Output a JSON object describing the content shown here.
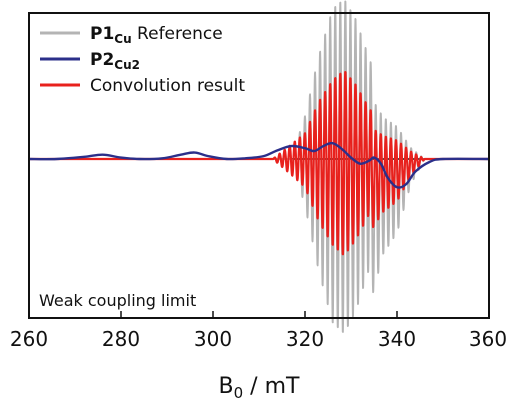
{
  "chart_data": {
    "type": "line",
    "xlabel": "B",
    "xlabel_sub": "0",
    "xlabel_unit": " / mT",
    "ylabel": "",
    "xlim": [
      260,
      360
    ],
    "ylim": [
      -1.0,
      1.0
    ],
    "x_ticks": [
      260,
      280,
      300,
      320,
      340,
      360
    ],
    "x_tick_labels": [
      "260",
      "280",
      "300",
      "320",
      "340",
      "360"
    ],
    "grid": false,
    "legend_position": "top-left",
    "annotation": "Weak coupling limit",
    "series": [
      {
        "name": "P1",
        "name_sub": "Cu",
        "name_suffix": " Reference",
        "color": "#b4b4b4",
        "style": "dense-oscillation",
        "center": 328.5,
        "oscillation_period": 1.1,
        "envelope": [
          {
            "x": 317,
            "y": 0.0
          },
          {
            "x": 320,
            "y": 0.3
          },
          {
            "x": 323,
            "y": 0.72
          },
          {
            "x": 326,
            "y": 1.05
          },
          {
            "x": 328.5,
            "y": 1.12
          },
          {
            "x": 331,
            "y": 0.98
          },
          {
            "x": 334,
            "y": 0.7
          },
          {
            "x": 337,
            "y": 0.45
          },
          {
            "x": 340,
            "y": 0.35
          },
          {
            "x": 343,
            "y": 0.12
          },
          {
            "x": 346,
            "y": 0.0
          }
        ]
      },
      {
        "name": "P2",
        "name_sub": "Cu2",
        "name_suffix": "",
        "color": "#2b2f8a",
        "style": "smooth",
        "points": [
          {
            "x": 260,
            "y": 0.0
          },
          {
            "x": 266,
            "y": 0.0
          },
          {
            "x": 272,
            "y": 0.015
          },
          {
            "x": 276,
            "y": 0.03
          },
          {
            "x": 280,
            "y": 0.01
          },
          {
            "x": 284,
            "y": 0.0
          },
          {
            "x": 289,
            "y": 0.005
          },
          {
            "x": 293,
            "y": 0.03
          },
          {
            "x": 296,
            "y": 0.045
          },
          {
            "x": 299,
            "y": 0.02
          },
          {
            "x": 303,
            "y": 0.0
          },
          {
            "x": 307,
            "y": 0.005
          },
          {
            "x": 311,
            "y": 0.02
          },
          {
            "x": 314,
            "y": 0.06
          },
          {
            "x": 317,
            "y": 0.09
          },
          {
            "x": 320,
            "y": 0.075
          },
          {
            "x": 322,
            "y": 0.055
          },
          {
            "x": 324,
            "y": 0.09
          },
          {
            "x": 326,
            "y": 0.11
          },
          {
            "x": 328,
            "y": 0.07
          },
          {
            "x": 330,
            "y": 0.01
          },
          {
            "x": 332,
            "y": -0.03
          },
          {
            "x": 334,
            "y": -0.01
          },
          {
            "x": 335,
            "y": 0.01
          },
          {
            "x": 336.5,
            "y": -0.03
          },
          {
            "x": 338,
            "y": -0.12
          },
          {
            "x": 340,
            "y": -0.18
          },
          {
            "x": 342,
            "y": -0.16
          },
          {
            "x": 344,
            "y": -0.08
          },
          {
            "x": 347,
            "y": -0.02
          },
          {
            "x": 350,
            "y": 0.0
          },
          {
            "x": 360,
            "y": 0.0
          }
        ]
      },
      {
        "name": "Convolution result",
        "name_sub": "",
        "name_suffix": "",
        "color": "#e8211d",
        "style": "dense-oscillation",
        "center": 328.5,
        "oscillation_period": 1.1,
        "envelope": [
          {
            "x": 313,
            "y": 0.0
          },
          {
            "x": 317,
            "y": 0.1
          },
          {
            "x": 320,
            "y": 0.18
          },
          {
            "x": 323,
            "y": 0.4
          },
          {
            "x": 326,
            "y": 0.55
          },
          {
            "x": 328.5,
            "y": 0.62
          },
          {
            "x": 331,
            "y": 0.52
          },
          {
            "x": 334,
            "y": 0.35
          },
          {
            "x": 337,
            "y": 0.25
          },
          {
            "x": 340,
            "y": 0.2
          },
          {
            "x": 343,
            "y": 0.08
          },
          {
            "x": 346,
            "y": 0.0
          }
        ]
      }
    ]
  }
}
